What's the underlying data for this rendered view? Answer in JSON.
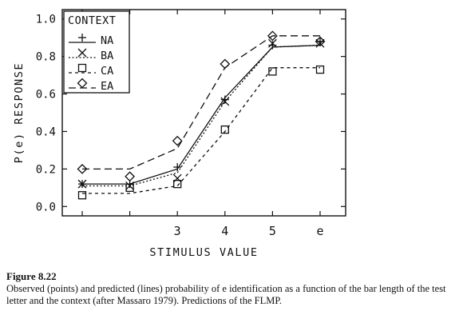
{
  "chart_data": {
    "type": "line",
    "ylabel": "P(e) RESPONSE",
    "xlabel": "STIMULUS VALUE",
    "x_ticks": [
      "",
      "",
      "3",
      "4",
      "5",
      "e"
    ],
    "ylim": [
      -0.05,
      1.05
    ],
    "y_ticks": [
      "0.0",
      "0.2",
      "0.4",
      "0.6",
      "0.8",
      "1.0"
    ],
    "legend": {
      "title": "CONTEXT",
      "placement": "top-left",
      "entries": [
        {
          "series": "NA",
          "label": "NA"
        },
        {
          "series": "BA",
          "label": "BA"
        },
        {
          "series": "CA",
          "label": "CA"
        },
        {
          "series": "EA",
          "label": "EA"
        }
      ]
    },
    "series": [
      {
        "name": "NA",
        "marker": "plus",
        "line": "solid",
        "observed": [
          0.12,
          0.12,
          0.21,
          0.57,
          0.86,
          0.88
        ],
        "predicted": [
          0.12,
          0.12,
          0.2,
          0.58,
          0.85,
          0.86
        ]
      },
      {
        "name": "BA",
        "marker": "cross",
        "line": "dotted",
        "observed": [
          0.12,
          0.11,
          0.15,
          0.56,
          0.87,
          0.87
        ],
        "predicted": [
          0.11,
          0.11,
          0.18,
          0.56,
          0.85,
          0.86
        ]
      },
      {
        "name": "CA",
        "marker": "square",
        "line": "short-dash",
        "observed": [
          0.06,
          0.1,
          0.12,
          0.41,
          0.72,
          0.73
        ],
        "predicted": [
          0.07,
          0.07,
          0.11,
          0.4,
          0.74,
          0.74
        ]
      },
      {
        "name": "EA",
        "marker": "diamond",
        "line": "long-dash",
        "observed": [
          0.2,
          0.16,
          0.35,
          0.76,
          0.91,
          0.88
        ],
        "predicted": [
          0.2,
          0.2,
          0.31,
          0.74,
          0.91,
          0.91
        ]
      }
    ]
  },
  "caption": {
    "label": "Figure 8.22",
    "text": "Observed (points) and predicted (lines) probability of e identification as a function of the bar length of the test letter and the context (after Massaro 1979). Predictions of the FLMP."
  }
}
